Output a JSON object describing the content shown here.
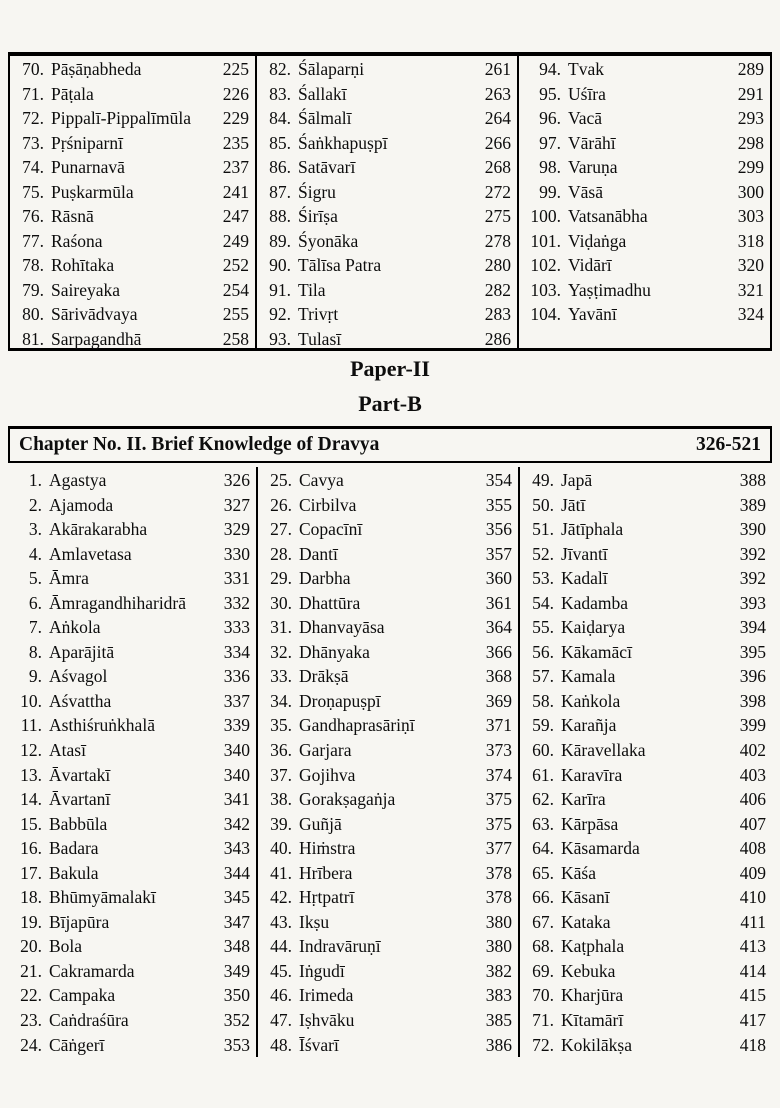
{
  "top_table": {
    "columns": [
      {
        "entries": [
          {
            "num": "70.",
            "name": "Pāṣāṇabheda",
            "pg": "225"
          },
          {
            "num": "71.",
            "name": "Pāṭala",
            "pg": "226"
          },
          {
            "num": "72.",
            "name": "Pippalī-Pippalīmūla",
            "pg": "229"
          },
          {
            "num": "73.",
            "name": "Pṛśniparnī",
            "pg": "235"
          },
          {
            "num": "74.",
            "name": "Punarnavā",
            "pg": "237"
          },
          {
            "num": "75.",
            "name": "Puṣkarmūla",
            "pg": "241"
          },
          {
            "num": "76.",
            "name": "Rāsnā",
            "pg": "247"
          },
          {
            "num": "77.",
            "name": "Raśona",
            "pg": "249"
          },
          {
            "num": "78.",
            "name": "Rohītaka",
            "pg": "252"
          },
          {
            "num": "79.",
            "name": "Saireyaka",
            "pg": "254"
          },
          {
            "num": "80.",
            "name": "Sārivādvaya",
            "pg": "255"
          },
          {
            "num": "81.",
            "name": "Sarpagandhā",
            "pg": "258"
          }
        ]
      },
      {
        "entries": [
          {
            "num": "82.",
            "name": "Śālaparṇi",
            "pg": "261"
          },
          {
            "num": "83.",
            "name": "Śallakī",
            "pg": "263"
          },
          {
            "num": "84.",
            "name": "Śālmalī",
            "pg": "264"
          },
          {
            "num": "85.",
            "name": "Śaṅkhapuṣpī",
            "pg": "266"
          },
          {
            "num": "86.",
            "name": "Satāvarī",
            "pg": "268"
          },
          {
            "num": "87.",
            "name": "Śigru",
            "pg": "272"
          },
          {
            "num": "88.",
            "name": "Śirīṣa",
            "pg": "275"
          },
          {
            "num": "89.",
            "name": "Śyonāka",
            "pg": "278"
          },
          {
            "num": "90.",
            "name": "Tālīsa Patra",
            "pg": "280"
          },
          {
            "num": "91.",
            "name": "Tila",
            "pg": "282"
          },
          {
            "num": "92.",
            "name": "Trivṛt",
            "pg": "283"
          },
          {
            "num": "93.",
            "name": "Tulasī",
            "pg": "286"
          }
        ]
      },
      {
        "entries": [
          {
            "num": "94.",
            "name": "Tvak",
            "pg": "289"
          },
          {
            "num": "95.",
            "name": "Uśīra",
            "pg": "291"
          },
          {
            "num": "96.",
            "name": "Vacā",
            "pg": "293"
          },
          {
            "num": "97.",
            "name": "Vārāhī",
            "pg": "298"
          },
          {
            "num": "98.",
            "name": "Varuṇa",
            "pg": "299"
          },
          {
            "num": "99.",
            "name": "Vāsā",
            "pg": "300"
          },
          {
            "num": "100.",
            "name": "Vatsanābha",
            "pg": "303"
          },
          {
            "num": "101.",
            "name": "Viḍaṅga",
            "pg": "318"
          },
          {
            "num": "102.",
            "name": "Vidārī",
            "pg": "320"
          },
          {
            "num": "103.",
            "name": "Yaṣṭimadhu",
            "pg": "321"
          },
          {
            "num": "104.",
            "name": "Yavānī",
            "pg": "324"
          }
        ]
      }
    ]
  },
  "headings": {
    "paper": "Paper-II",
    "part": "Part-B"
  },
  "chapter_header": {
    "title": "Chapter No. II. Brief Knowledge of Dravya",
    "pages": "326-521"
  },
  "main_table": {
    "columns": [
      {
        "entries": [
          {
            "num": "1.",
            "name": "Agastya",
            "pg": "326"
          },
          {
            "num": "2.",
            "name": "Ajamoda",
            "pg": "327"
          },
          {
            "num": "3.",
            "name": "Akārakarabha",
            "pg": "329"
          },
          {
            "num": "4.",
            "name": "Amlavetasa",
            "pg": "330"
          },
          {
            "num": "5.",
            "name": "Āmra",
            "pg": "331"
          },
          {
            "num": "6.",
            "name": "Āmragandhiharidrā",
            "pg": "332"
          },
          {
            "num": "7.",
            "name": "Aṅkola",
            "pg": "333"
          },
          {
            "num": "8.",
            "name": "Aparājitā",
            "pg": "334"
          },
          {
            "num": "9.",
            "name": "Aśvagol",
            "pg": "336"
          },
          {
            "num": "10.",
            "name": "Aśvattha",
            "pg": "337"
          },
          {
            "num": "11.",
            "name": "Asthiśruṅkhalā",
            "pg": "339"
          },
          {
            "num": "12.",
            "name": "Atasī",
            "pg": "340"
          },
          {
            "num": "13.",
            "name": "Āvartakī",
            "pg": "340"
          },
          {
            "num": "14.",
            "name": "Āvartanī",
            "pg": "341"
          },
          {
            "num": "15.",
            "name": "Babbūla",
            "pg": "342"
          },
          {
            "num": "16.",
            "name": "Badara",
            "pg": "343"
          },
          {
            "num": "17.",
            "name": "Bakula",
            "pg": "344"
          },
          {
            "num": "18.",
            "name": "Bhūmyāmalakī",
            "pg": "345"
          },
          {
            "num": "19.",
            "name": "Bījapūra",
            "pg": "347"
          },
          {
            "num": "20.",
            "name": "Bola",
            "pg": "348"
          },
          {
            "num": "21.",
            "name": "Cakramarda",
            "pg": "349"
          },
          {
            "num": "22.",
            "name": "Campaka",
            "pg": "350"
          },
          {
            "num": "23.",
            "name": "Caṅdraśūra",
            "pg": "352"
          },
          {
            "num": "24.",
            "name": "Cāṅgerī",
            "pg": "353"
          }
        ]
      },
      {
        "entries": [
          {
            "num": "25.",
            "name": "Cavya",
            "pg": "354"
          },
          {
            "num": "26.",
            "name": "Cirbilva",
            "pg": "355"
          },
          {
            "num": "27.",
            "name": "Copacīnī",
            "pg": "356"
          },
          {
            "num": "28.",
            "name": "Dantī",
            "pg": "357"
          },
          {
            "num": "29.",
            "name": "Darbha",
            "pg": "360"
          },
          {
            "num": "30.",
            "name": "Dhattūra",
            "pg": "361"
          },
          {
            "num": "31.",
            "name": "Dhanvayāsa",
            "pg": "364"
          },
          {
            "num": "32.",
            "name": "Dhānyaka",
            "pg": "366"
          },
          {
            "num": "33.",
            "name": "Drākṣā",
            "pg": "368"
          },
          {
            "num": "34.",
            "name": "Droṇapuṣpī",
            "pg": "369"
          },
          {
            "num": "35.",
            "name": "Gandhaprasāriṇī",
            "pg": "371"
          },
          {
            "num": "36.",
            "name": "Garjara",
            "pg": "373"
          },
          {
            "num": "37.",
            "name": "Gojihva",
            "pg": "374"
          },
          {
            "num": "38.",
            "name": "Gorakṣagaṅja",
            "pg": "375"
          },
          {
            "num": "39.",
            "name": "Guñjā",
            "pg": "375"
          },
          {
            "num": "40.",
            "name": "Hiṁstra",
            "pg": "377"
          },
          {
            "num": "41.",
            "name": "Hrībera",
            "pg": "378"
          },
          {
            "num": "42.",
            "name": "Hṛtpatrī",
            "pg": "378"
          },
          {
            "num": "43.",
            "name": "Ikṣu",
            "pg": "380"
          },
          {
            "num": "44.",
            "name": "Indravāruṇī",
            "pg": "380"
          },
          {
            "num": "45.",
            "name": "Iṅgudī",
            "pg": "382"
          },
          {
            "num": "46.",
            "name": "Irimeda",
            "pg": "383"
          },
          {
            "num": "47.",
            "name": "Iṣhvāku",
            "pg": "385"
          },
          {
            "num": "48.",
            "name": "Īśvarī",
            "pg": "386"
          }
        ]
      },
      {
        "entries": [
          {
            "num": "49.",
            "name": "Japā",
            "pg": "388"
          },
          {
            "num": "50.",
            "name": "Jātī",
            "pg": "389"
          },
          {
            "num": "51.",
            "name": "Jātīphala",
            "pg": "390"
          },
          {
            "num": "52.",
            "name": "Jīvantī",
            "pg": "392"
          },
          {
            "num": "53.",
            "name": "Kadalī",
            "pg": "392"
          },
          {
            "num": "54.",
            "name": "Kadamba",
            "pg": "393"
          },
          {
            "num": "55.",
            "name": "Kaiḍarya",
            "pg": "394"
          },
          {
            "num": "56.",
            "name": "Kākamācī",
            "pg": "395"
          },
          {
            "num": "57.",
            "name": "Kamala",
            "pg": "396"
          },
          {
            "num": "58.",
            "name": "Kaṅkola",
            "pg": "398"
          },
          {
            "num": "59.",
            "name": "Karañja",
            "pg": "399"
          },
          {
            "num": "60.",
            "name": "Kāravellaka",
            "pg": "402"
          },
          {
            "num": "61.",
            "name": "Karavīra",
            "pg": "403"
          },
          {
            "num": "62.",
            "name": "Karīra",
            "pg": "406"
          },
          {
            "num": "63.",
            "name": "Kārpāsa",
            "pg": "407"
          },
          {
            "num": "64.",
            "name": "Kāsamarda",
            "pg": "408"
          },
          {
            "num": "65.",
            "name": "Kāśa",
            "pg": "409"
          },
          {
            "num": "66.",
            "name": "Kāsanī",
            "pg": "410"
          },
          {
            "num": "67.",
            "name": "Kataka",
            "pg": "411"
          },
          {
            "num": "68.",
            "name": "Kaṭphala",
            "pg": "413"
          },
          {
            "num": "69.",
            "name": "Kebuka",
            "pg": "414"
          },
          {
            "num": "70.",
            "name": "Kharjūra",
            "pg": "415"
          },
          {
            "num": "71.",
            "name": "Kītamārī",
            "pg": "417"
          },
          {
            "num": "72.",
            "name": "Kokilākṣa",
            "pg": "418"
          }
        ]
      }
    ]
  }
}
